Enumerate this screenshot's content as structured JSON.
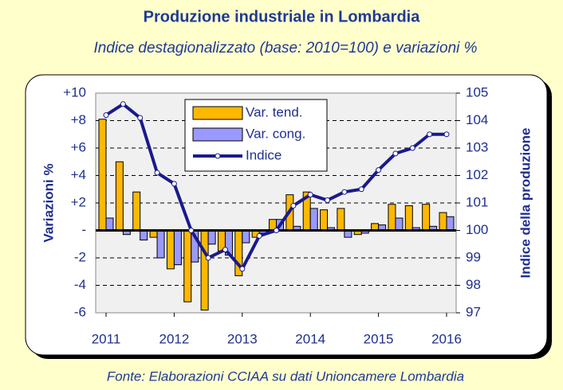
{
  "chart_data": {
    "type": "bar-line",
    "title": "Produzione industriale in Lombardia",
    "subtitle": "Indice destagionalizzato (base: 2010=100) e variazioni %",
    "source": "Fonte: Elaborazioni CCIAA su dati Unioncamere Lombardia",
    "ylabel": "Variazioni %",
    "y2label": "Indice della produzione",
    "categories": [
      "2011",
      null,
      null,
      null,
      "2012",
      null,
      null,
      null,
      "2013",
      null,
      null,
      null,
      "2014",
      null,
      null,
      null,
      "2015",
      null,
      null,
      null,
      "2016"
    ],
    "series": [
      {
        "name": "Var. tend.",
        "type": "bar",
        "color": "#ffb800",
        "values": [
          8.1,
          5.0,
          2.8,
          -0.5,
          -2.8,
          -5.2,
          -5.8,
          -1.5,
          -3.3,
          -0.5,
          0.8,
          2.6,
          2.8,
          1.5,
          1.6,
          -0.3,
          0.5,
          1.9,
          1.8,
          1.9,
          1.3
        ]
      },
      {
        "name": "Var. cong.",
        "type": "bar",
        "color": "#9999ff",
        "values": [
          0.9,
          -0.3,
          -0.7,
          -2.0,
          -2.5,
          -2.3,
          -1.0,
          -1.8,
          -0.9,
          -0.2,
          0.8,
          0.3,
          1.6,
          0.2,
          -0.5,
          -0.2,
          0.4,
          0.9,
          0.2,
          0.3,
          1.0
        ]
      },
      {
        "name": "Indice",
        "type": "line",
        "axis": "y2",
        "color": "#1a1a8c",
        "values": [
          104.2,
          104.6,
          104.1,
          102.1,
          101.7,
          100.0,
          99.0,
          99.3,
          98.6,
          99.8,
          100.0,
          100.9,
          101.3,
          101.1,
          101.4,
          101.5,
          102.2,
          102.8,
          103.0,
          103.5,
          103.5
        ]
      }
    ],
    "ylim": [
      -6,
      10
    ],
    "yticks": [
      {
        "value": 10,
        "label": "+10"
      },
      {
        "value": 8,
        "label": "+8"
      },
      {
        "value": 6,
        "label": "+6"
      },
      {
        "value": 4,
        "label": "+4"
      },
      {
        "value": 2,
        "label": "+2"
      },
      {
        "value": 0,
        "label": "-"
      },
      -2,
      -4,
      -6
    ],
    "y2lim": [
      97,
      105
    ],
    "y2ticks": [
      97,
      98,
      99,
      100,
      101,
      102,
      103,
      104,
      105
    ],
    "grid": true
  }
}
